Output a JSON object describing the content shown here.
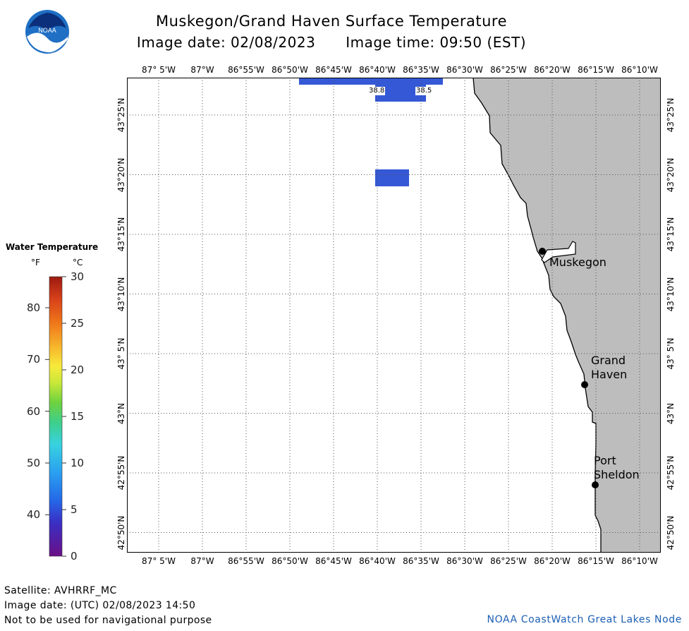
{
  "header": {
    "title": "Muskegon/Grand Haven Surface Temperature",
    "image_date": "Image date: 02/08/2023",
    "image_time": "Image time: 09:50 (EST)"
  },
  "logo": {
    "text": "NOAA"
  },
  "longitude_ticks": [
    "87° 5'W",
    "87°W",
    "86°55'W",
    "86°50'W",
    "86°45'W",
    "86°40'W",
    "86°35'W",
    "86°30'W",
    "86°25'W",
    "86°20'W",
    "86°15'W",
    "86°10'W"
  ],
  "latitude_ticks": [
    "43°25'N",
    "43°20'N",
    "43°15'N",
    "43°10'N",
    "43° 5'N",
    "43°N",
    "42°55'N",
    "42°50'N"
  ],
  "places": [
    {
      "name": "Muskegon"
    },
    {
      "name": "Grand\nHaven"
    },
    {
      "name": "Port\nSheldon"
    }
  ],
  "temperature_cells": [
    {
      "label": "38.8"
    },
    {
      "label": "38.5"
    }
  ],
  "legend": {
    "title": "Water Temperature",
    "unit_f": "°F",
    "unit_c": "°C",
    "f_ticks": [
      "80",
      "70",
      "60",
      "50",
      "40"
    ],
    "c_ticks": [
      "30",
      "25",
      "20",
      "15",
      "10",
      "5",
      "0"
    ],
    "colors": [
      "#6a0f86",
      "#3a2fc4",
      "#2468e8",
      "#2aa0f0",
      "#37d2e0",
      "#3fcf8a",
      "#6ed23e",
      "#c8e83a",
      "#f7e93a",
      "#f7b52c",
      "#f07a1a",
      "#d8401a",
      "#9c1a10"
    ]
  },
  "colors": {
    "land": "#bdbdbd",
    "water_cell": "#3558d6",
    "footer_link": "#1c5fb3"
  },
  "footer": {
    "satellite": "Satellite: AVHRRF_MC",
    "utc_date": "Image date: (UTC) 02/08/2023  14:50",
    "disclaimer": "Not to be used for navigational purpose",
    "credit": "NOAA CoastWatch Great Lakes Node"
  }
}
